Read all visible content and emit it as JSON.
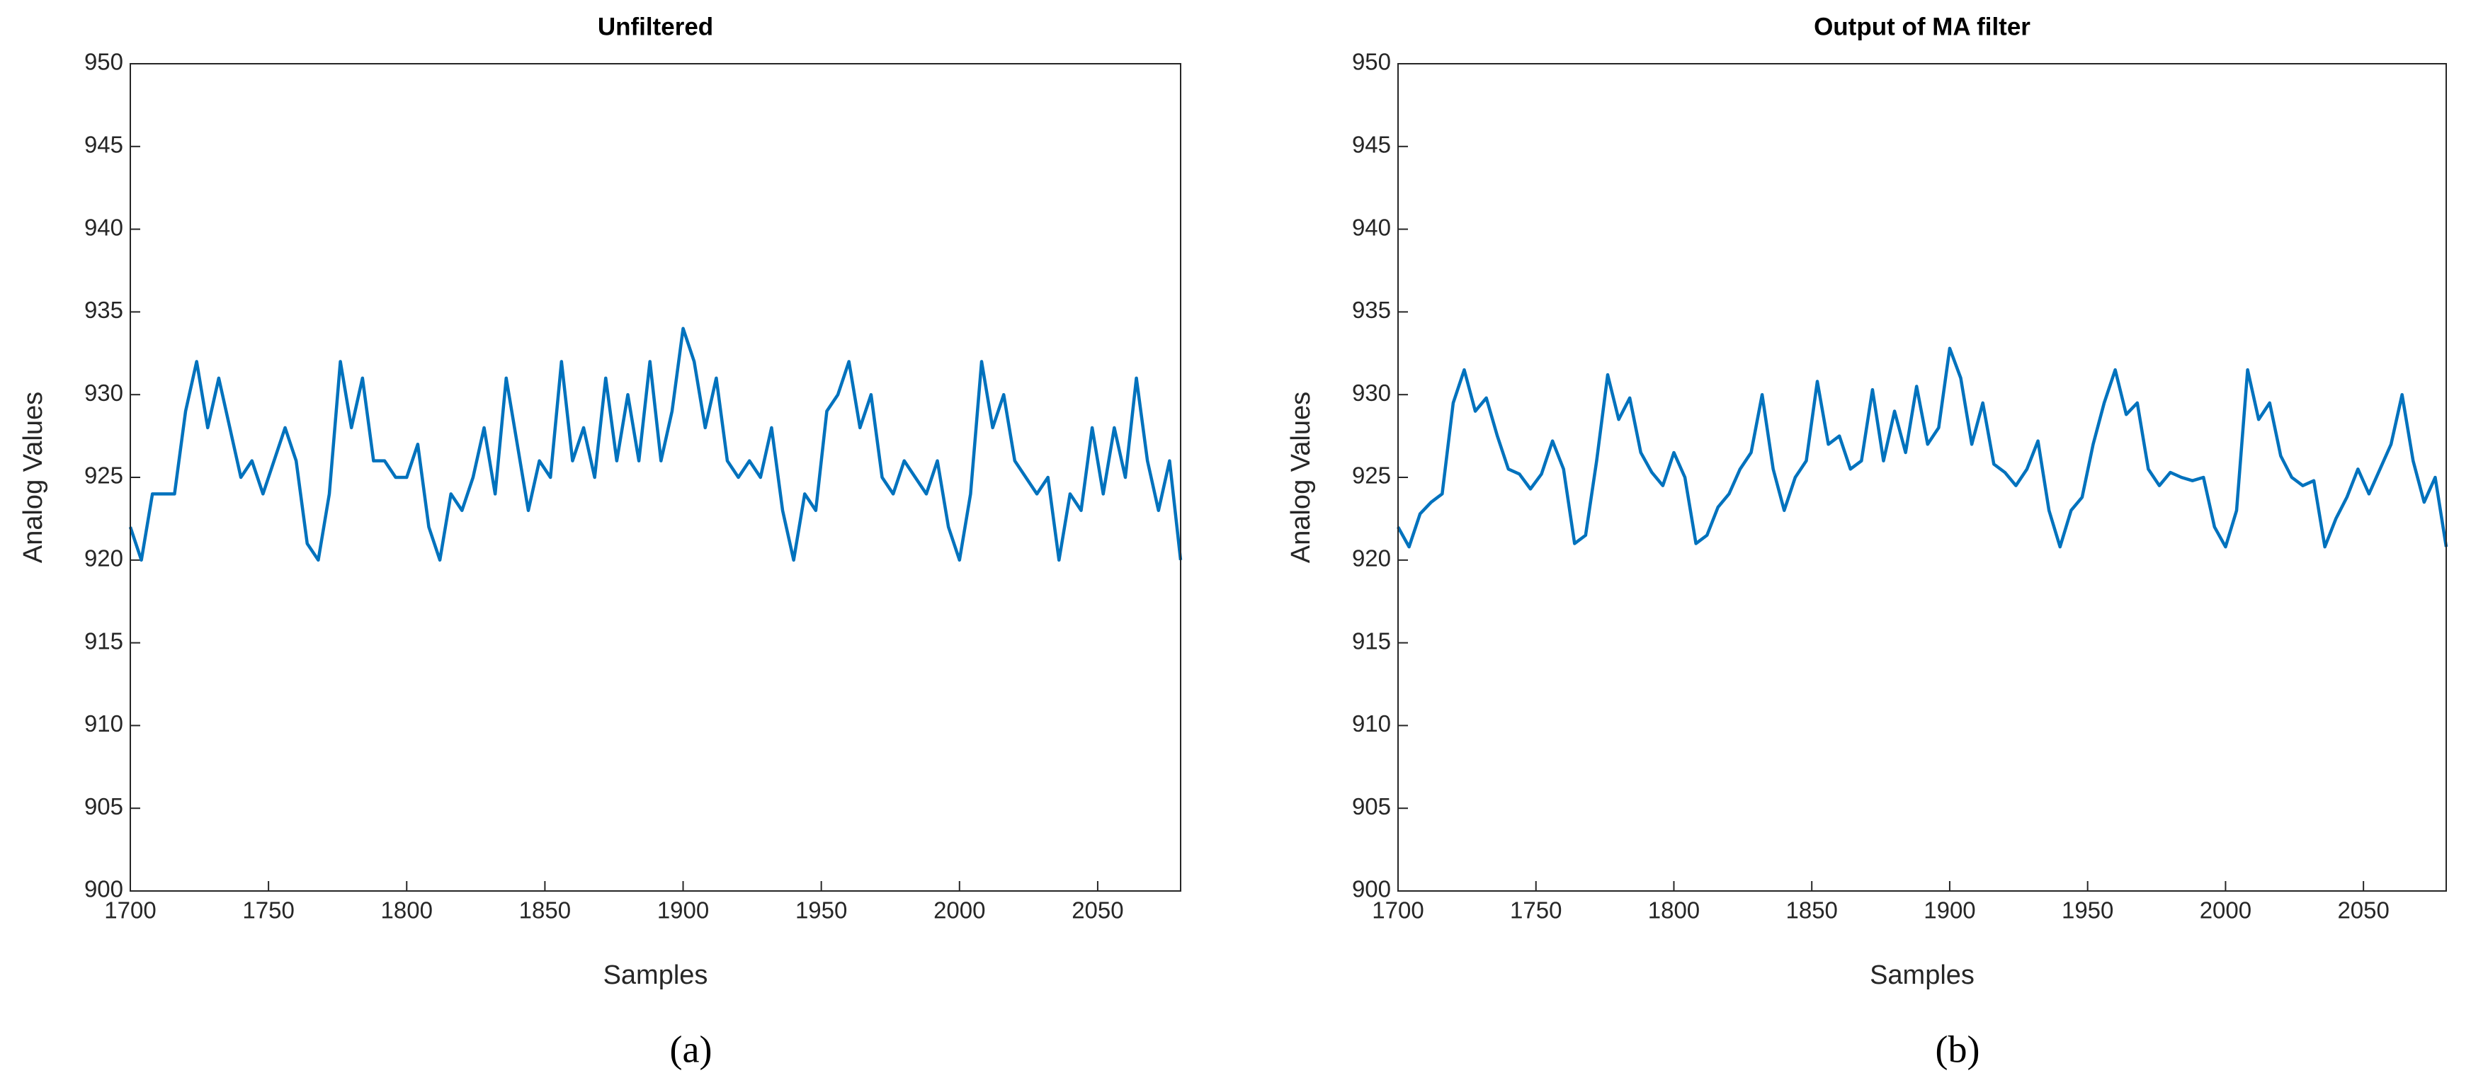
{
  "chart_data": [
    {
      "type": "line",
      "title": "Unfiltered",
      "xlabel": "Samples",
      "ylabel": "Analog Values",
      "caption": "(a)",
      "xlim": [
        1700,
        2080
      ],
      "xticks": [
        1700,
        1750,
        1800,
        1850,
        1900,
        1950,
        2000,
        2050
      ],
      "ylim": [
        900,
        950
      ],
      "yticks": [
        900,
        905,
        910,
        915,
        920,
        925,
        930,
        935,
        940,
        945,
        950
      ],
      "grid": false,
      "x": [
        1700,
        1704,
        1708,
        1712,
        1716,
        1720,
        1724,
        1728,
        1732,
        1736,
        1740,
        1744,
        1748,
        1752,
        1756,
        1760,
        1764,
        1768,
        1772,
        1776,
        1780,
        1784,
        1788,
        1792,
        1796,
        1800,
        1804,
        1808,
        1812,
        1816,
        1820,
        1824,
        1828,
        1832,
        1836,
        1840,
        1844,
        1848,
        1852,
        1856,
        1860,
        1864,
        1868,
        1872,
        1876,
        1880,
        1884,
        1888,
        1892,
        1896,
        1900,
        1904,
        1908,
        1912,
        1916,
        1920,
        1924,
        1928,
        1932,
        1936,
        1940,
        1944,
        1948,
        1952,
        1956,
        1960,
        1964,
        1968,
        1972,
        1976,
        1980,
        1984,
        1988,
        1992,
        1996,
        2000,
        2004,
        2008,
        2012,
        2016,
        2020,
        2024,
        2028,
        2032,
        2036,
        2040,
        2044,
        2048,
        2052,
        2056,
        2060,
        2064,
        2068,
        2072,
        2076,
        2080
      ],
      "series": [
        {
          "color": "#0072bd",
          "values": [
            922,
            920,
            924,
            924,
            924,
            929,
            932,
            928,
            931,
            928,
            925,
            926,
            924,
            926,
            928,
            926,
            921,
            920,
            924,
            932,
            928,
            931,
            926,
            926,
            925,
            925,
            927,
            922,
            920,
            924,
            923,
            925,
            928,
            924,
            931,
            927,
            923,
            926,
            925,
            932,
            926,
            928,
            925,
            931,
            926,
            930,
            926,
            932,
            926,
            929,
            934,
            932,
            928,
            931,
            926,
            925,
            926,
            925,
            928,
            923,
            920,
            924,
            923,
            929,
            930,
            932,
            928,
            930,
            925,
            924,
            926,
            925,
            924,
            926,
            922,
            920,
            924,
            932,
            928,
            930,
            926,
            925,
            924,
            925,
            920,
            924,
            923,
            928,
            924,
            928,
            925,
            931,
            926,
            923,
            926,
            920
          ]
        }
      ]
    },
    {
      "type": "line",
      "title": "Output of MA filter",
      "xlabel": "Samples",
      "ylabel": "Analog Values",
      "caption": "(b)",
      "xlim": [
        1700,
        2080
      ],
      "xticks": [
        1700,
        1750,
        1800,
        1850,
        1900,
        1950,
        2000,
        2050
      ],
      "ylim": [
        900,
        950
      ],
      "yticks": [
        900,
        905,
        910,
        915,
        920,
        925,
        930,
        935,
        940,
        945,
        950
      ],
      "grid": false,
      "x": [
        1700,
        1704,
        1708,
        1712,
        1716,
        1720,
        1724,
        1728,
        1732,
        1736,
        1740,
        1744,
        1748,
        1752,
        1756,
        1760,
        1764,
        1768,
        1772,
        1776,
        1780,
        1784,
        1788,
        1792,
        1796,
        1800,
        1804,
        1808,
        1812,
        1816,
        1820,
        1824,
        1828,
        1832,
        1836,
        1840,
        1844,
        1848,
        1852,
        1856,
        1860,
        1864,
        1868,
        1872,
        1876,
        1880,
        1884,
        1888,
        1892,
        1896,
        1900,
        1904,
        1908,
        1912,
        1916,
        1920,
        1924,
        1928,
        1932,
        1936,
        1940,
        1944,
        1948,
        1952,
        1956,
        1960,
        1964,
        1968,
        1972,
        1976,
        1980,
        1984,
        1988,
        1992,
        1996,
        2000,
        2004,
        2008,
        2012,
        2016,
        2020,
        2024,
        2028,
        2032,
        2036,
        2040,
        2044,
        2048,
        2052,
        2056,
        2060,
        2064,
        2068,
        2072,
        2076,
        2080
      ],
      "series": [
        {
          "color": "#0072bd",
          "values": [
            922,
            920.8,
            922.8,
            923.5,
            924,
            929.5,
            931.5,
            929,
            929.8,
            927.5,
            925.5,
            925.2,
            924.3,
            925.2,
            927.2,
            925.5,
            921,
            921.5,
            926,
            931.2,
            928.5,
            929.8,
            926.5,
            925.3,
            924.5,
            926.5,
            925,
            921,
            921.5,
            923.2,
            924,
            925.5,
            926.5,
            930,
            925.5,
            923,
            925,
            926,
            930.8,
            927,
            927.5,
            925.5,
            926,
            930.3,
            926,
            929,
            926.5,
            930.5,
            927,
            928,
            932.8,
            931,
            927,
            929.5,
            925.8,
            925.3,
            924.5,
            925.5,
            927.2,
            923,
            920.8,
            923,
            923.8,
            927,
            929.5,
            931.5,
            928.8,
            929.5,
            925.5,
            924.5,
            925.3,
            925,
            924.8,
            925,
            922,
            920.8,
            923,
            931.5,
            928.5,
            929.5,
            926.3,
            925,
            924.5,
            924.8,
            920.8,
            922.5,
            923.8,
            925.5,
            924,
            925.5,
            927,
            930,
            926,
            923.5,
            925,
            920.8
          ]
        }
      ]
    }
  ]
}
